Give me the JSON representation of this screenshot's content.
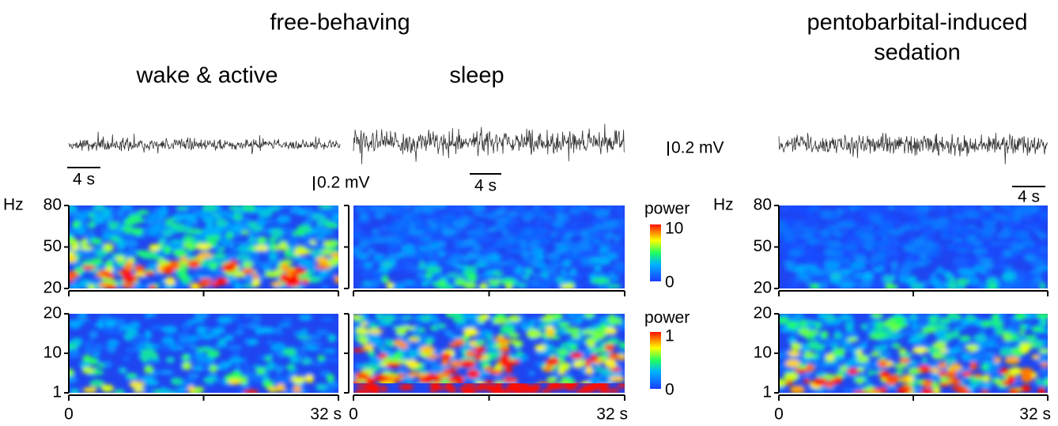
{
  "headers": {
    "free_behaving": "free-behaving",
    "sedation": [
      "pentobarbital-induced",
      "sedation"
    ],
    "conditions": [
      "wake & active",
      "sleep"
    ]
  },
  "scale_bars": {
    "time": "4 s",
    "voltage": "0.2 mV"
  },
  "axes": {
    "unit": "Hz",
    "high_ticks": [
      "80",
      "50",
      "20"
    ],
    "low_ticks": [
      "20",
      "10",
      "1"
    ],
    "x_ticks": [
      "0",
      "32 s"
    ]
  },
  "colorbars": [
    {
      "label": "power",
      "max": "10",
      "min": "0"
    },
    {
      "label": "power",
      "max": "1",
      "min": "0"
    }
  ]
}
